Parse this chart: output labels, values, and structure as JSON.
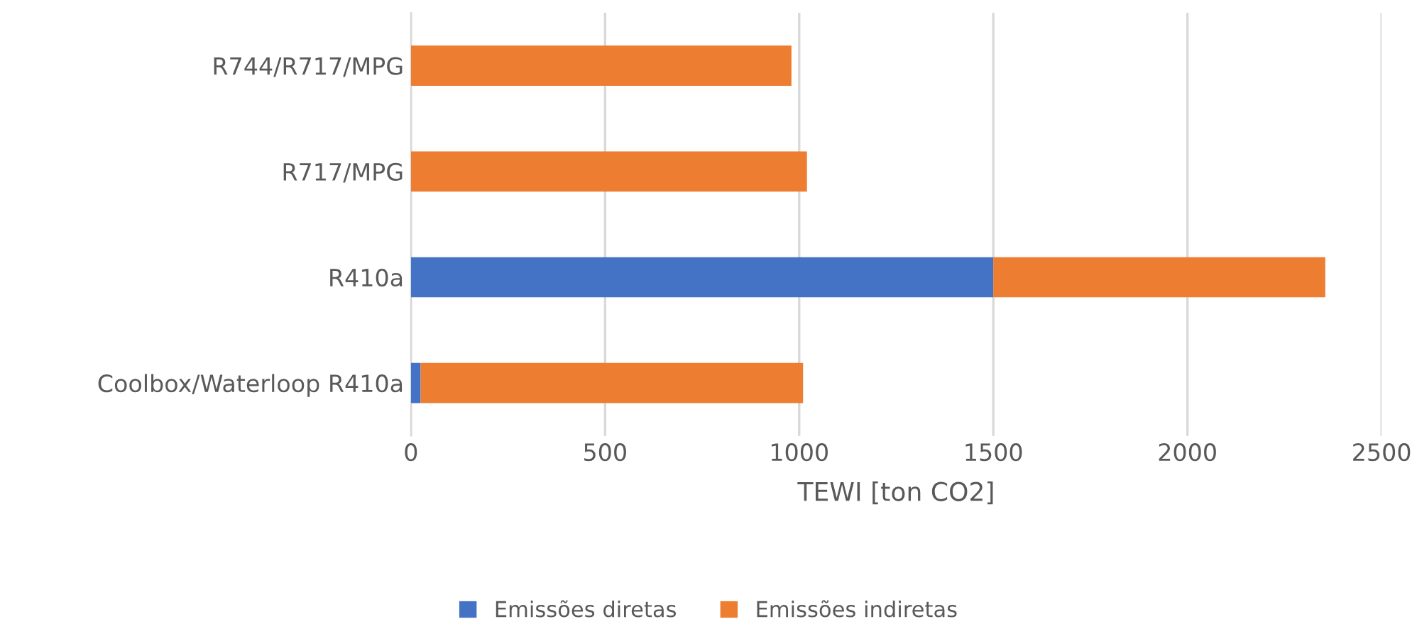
{
  "chart_data": {
    "type": "bar",
    "orientation": "horizontal",
    "stacked": true,
    "xlabel": "TEWI [ton CO2]",
    "categories": [
      "R744/R717/MPG",
      "R717/MPG",
      "R410a",
      "Coolbox/Waterloop R410a"
    ],
    "series": [
      {
        "name": "Emissões diretas",
        "color": "#4472c4",
        "values": [
          0,
          0,
          1500,
          25
        ]
      },
      {
        "name": "Emissões indiretas",
        "color": "#ed7d31",
        "values": [
          980,
          1020,
          855,
          985
        ]
      }
    ],
    "xlim": [
      0,
      2500
    ],
    "xticks": [
      0,
      500,
      1000,
      1500,
      2000,
      2500
    ],
    "grid": "x",
    "legend": "bottom"
  }
}
